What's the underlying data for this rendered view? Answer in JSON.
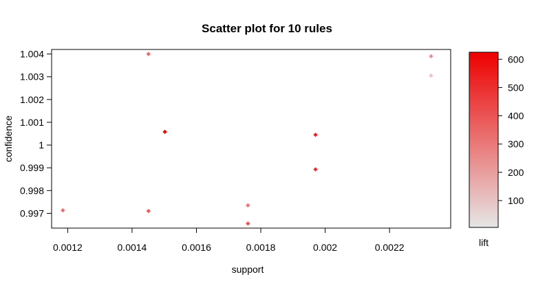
{
  "chart_data": {
    "type": "scatter",
    "title": "Scatter plot for 10 rules",
    "xlabel": "support",
    "ylabel": "confidence",
    "xlim": [
      0.00115,
      0.00239
    ],
    "ylim": [
      0.99635,
      1.0042
    ],
    "xticks": [
      {
        "value": 0.0012,
        "label": "0.0012"
      },
      {
        "value": 0.0014,
        "label": "0.0014"
      },
      {
        "value": 0.0016,
        "label": "0.0016"
      },
      {
        "value": 0.0018,
        "label": "0.0018"
      },
      {
        "value": 0.002,
        "label": "0.002"
      },
      {
        "value": 0.0022,
        "label": "0.0022"
      }
    ],
    "yticks": [
      {
        "value": 1.004,
        "label": "1.004"
      },
      {
        "value": 1.003,
        "label": "1.003"
      },
      {
        "value": 1.002,
        "label": "1.002"
      },
      {
        "value": 1.001,
        "label": "1.001"
      },
      {
        "value": 1.0,
        "label": "1"
      },
      {
        "value": 0.999,
        "label": "0.999"
      },
      {
        "value": 0.998,
        "label": "0.998"
      },
      {
        "value": 0.997,
        "label": "0.997"
      }
    ],
    "points": [
      {
        "support": 0.001451,
        "confidence": 1.004,
        "lift": 330
      },
      {
        "support": 0.002329,
        "confidence": 1.0039,
        "lift": 240
      },
      {
        "support": 0.002329,
        "confidence": 1.00305,
        "lift": 90
      },
      {
        "support": 0.001502,
        "confidence": 1.00058,
        "lift": 620
      },
      {
        "support": 0.00197,
        "confidence": 1.00045,
        "lift": 540
      },
      {
        "support": 0.00197,
        "confidence": 0.99893,
        "lift": 500
      },
      {
        "support": 0.001185,
        "confidence": 0.99713,
        "lift": 330
      },
      {
        "support": 0.001451,
        "confidence": 0.9971,
        "lift": 380
      },
      {
        "support": 0.00176,
        "confidence": 0.99735,
        "lift": 300
      },
      {
        "support": 0.00176,
        "confidence": 0.99655,
        "lift": 400
      }
    ],
    "colorbar": {
      "label": "lift",
      "min": 5,
      "max": 625,
      "low_color": "#e6e6e6",
      "high_color": "#ee0000",
      "ticks": [
        {
          "value": 100,
          "label": "100"
        },
        {
          "value": 200,
          "label": "200"
        },
        {
          "value": 300,
          "label": "300"
        },
        {
          "value": 400,
          "label": "400"
        },
        {
          "value": 500,
          "label": "500"
        },
        {
          "value": 600,
          "label": "600"
        }
      ]
    }
  }
}
